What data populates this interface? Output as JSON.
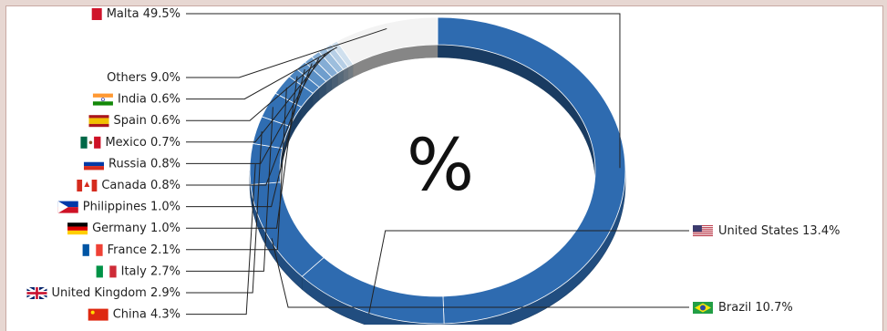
{
  "chart_data": {
    "type": "pie",
    "style": "3d-donut",
    "title": "%",
    "slices": [
      {
        "label": "Malta",
        "value": 49.5,
        "display": "49.5%",
        "flag": "malta-flag-icon",
        "color": "#2e6bb0"
      },
      {
        "label": "United States",
        "value": 13.4,
        "display": "13.4%",
        "flag": "us-flag-icon",
        "color": "#2e6bb0"
      },
      {
        "label": "Brazil",
        "value": 10.7,
        "display": "10.7%",
        "flag": "brazil-flag-icon",
        "color": "#2e6bb0"
      },
      {
        "label": "China",
        "value": 4.3,
        "display": "4.3%",
        "flag": "china-flag-icon",
        "color": "#2e6bb0"
      },
      {
        "label": "United Kingdom",
        "value": 2.9,
        "display": "2.9%",
        "flag": "uk-flag-icon",
        "color": "#2f6db2"
      },
      {
        "label": "Italy",
        "value": 2.7,
        "display": "2.7%",
        "flag": "italy-flag-icon",
        "color": "#3270b4"
      },
      {
        "label": "France",
        "value": 2.1,
        "display": "2.1%",
        "flag": "france-flag-icon",
        "color": "#3c78b8"
      },
      {
        "label": "Germany",
        "value": 1.0,
        "display": "1.0%",
        "flag": "germany-flag-icon",
        "color": "#4a83be"
      },
      {
        "label": "Philippines",
        "value": 1.0,
        "display": "1.0%",
        "flag": "philippines-flag-icon",
        "color": "#5b90c5"
      },
      {
        "label": "Canada",
        "value": 0.8,
        "display": "0.8%",
        "flag": "canada-flag-icon",
        "color": "#6f9ecd"
      },
      {
        "label": "Russia",
        "value": 0.8,
        "display": "0.8%",
        "flag": "russia-flag-icon",
        "color": "#85add5"
      },
      {
        "label": "Mexico",
        "value": 0.7,
        "display": "0.7%",
        "flag": "mexico-flag-icon",
        "color": "#9dbedd"
      },
      {
        "label": "Spain",
        "value": 0.6,
        "display": "0.6%",
        "flag": "spain-flag-icon",
        "color": "#b7cfe6"
      },
      {
        "label": "India",
        "value": 0.6,
        "display": "0.6%",
        "flag": "india-flag-icon",
        "color": "#d0e0ee"
      },
      {
        "label": "Others",
        "value": 9.0,
        "display": "9.0%",
        "flag": "",
        "color": "#f3f3f3"
      }
    ]
  }
}
